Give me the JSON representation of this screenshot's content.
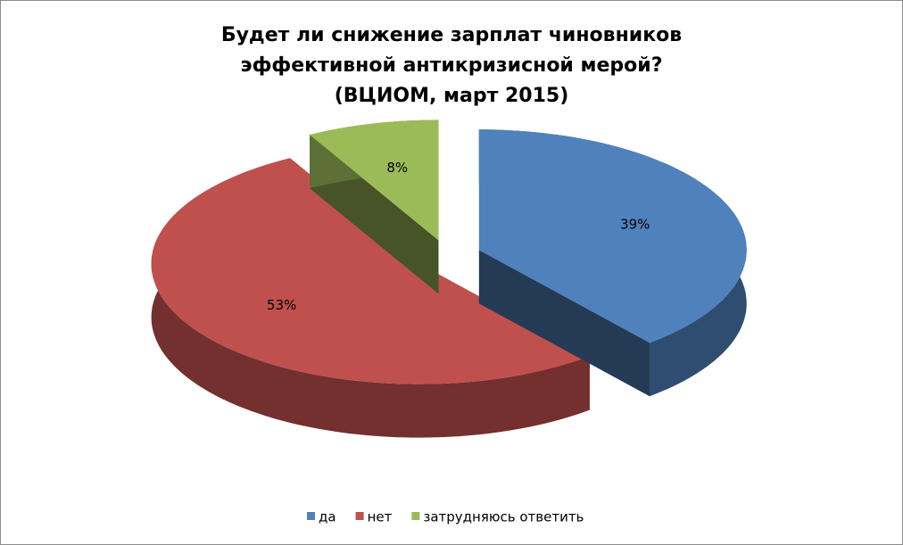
{
  "chart_data": {
    "type": "pie",
    "title": "Будет ли снижение зарплат чиновников эффективной антикризисной мерой? (ВЦИОМ, март 2015)",
    "categories": [
      "да",
      "нет",
      "затрудняюсь ответить"
    ],
    "values": [
      39,
      53,
      8
    ],
    "value_labels": [
      "39%",
      "53%",
      "8%"
    ],
    "colors": [
      "#4f81bd",
      "#c0504d",
      "#9bbb59"
    ],
    "legend": "bottom"
  }
}
